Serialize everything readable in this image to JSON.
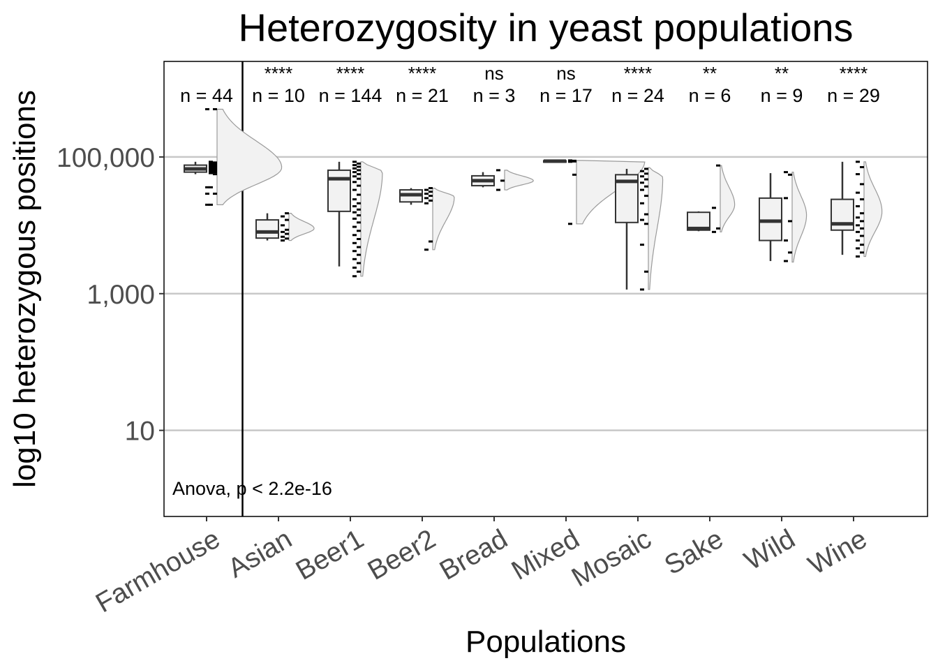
{
  "chart_data": {
    "type": "raincloud",
    "title": "Heterozygosity in yeast populations",
    "xlabel": "Populations",
    "ylabel": "log10 heterozygous positions",
    "y_scale": "log10",
    "ylim": [
      0.55,
      2500000
    ],
    "y_ticks": [
      {
        "value": 10,
        "label": "10"
      },
      {
        "value": 1000,
        "label": "1,000"
      },
      {
        "value": 100000,
        "label": "100,000"
      }
    ],
    "grid": {
      "major_y": true,
      "color": "#c8c8c8"
    },
    "annotation": "Anova, p < 2.2e-16",
    "reference_group": "Farmhouse",
    "categories": [
      "Farmhouse",
      "Asian",
      "Beer1",
      "Beer2",
      "Bread",
      "Mixed",
      "Mosaic",
      "Sake",
      "Wild",
      "Wine"
    ],
    "groups": [
      {
        "name": "Farmhouse",
        "n_label": "n = 44",
        "signif": "",
        "box": {
          "min": 56000,
          "q1": 60000,
          "median": 67000,
          "q3": 76000,
          "max": 85000
        },
        "outliers": [
          20000,
          29000,
          36000,
          500000
        ],
        "points": [
          20000,
          29000,
          36000,
          56000,
          58000,
          60000,
          61000,
          62000,
          63000,
          64000,
          65000,
          66000,
          67000,
          68000,
          69000,
          70000,
          71000,
          72000,
          73000,
          74000,
          75000,
          76000,
          77000,
          79000,
          81000,
          83000,
          85000,
          500000
        ],
        "density": {
          "from": 20000,
          "to": 500000,
          "peak": 70000,
          "width": 0.9
        }
      },
      {
        "name": "Asian",
        "n_label": "n = 10",
        "signif": "****",
        "box": {
          "min": 6000,
          "q1": 6500,
          "median": 8000,
          "q3": 12000,
          "max": 15000
        },
        "outliers": [],
        "points": [
          6000,
          6400,
          6800,
          7500,
          8000,
          8600,
          10000,
          12000,
          13500,
          15000
        ],
        "density": {
          "from": 6000,
          "to": 15000,
          "peak": 9000,
          "width": 0.35
        }
      },
      {
        "name": "Beer1",
        "n_label": "n = 144",
        "signif": "****",
        "box": {
          "min": 2500,
          "q1": 16000,
          "median": 48000,
          "q3": 64000,
          "max": 85000
        },
        "outliers": [],
        "points": [
          1800,
          2100,
          2400,
          2800,
          3200,
          3700,
          4200,
          4800,
          5500,
          6300,
          7200,
          8300,
          9500,
          11000,
          12500,
          14000,
          15500,
          17000,
          19000,
          21000,
          24000,
          28000,
          33000,
          38000,
          43000,
          48000,
          52000,
          56000,
          60000,
          64000,
          68000,
          72000,
          76000,
          80000,
          85000
        ],
        "density": {
          "from": 1800,
          "to": 85000,
          "peak": 60000,
          "width": 0.3
        }
      },
      {
        "name": "Beer2",
        "n_label": "n = 21",
        "signif": "****",
        "box": {
          "min": 20000,
          "q1": 22000,
          "median": 28000,
          "q3": 33000,
          "max": 35000
        },
        "outliers": [],
        "points": [
          4400,
          5800,
          21000,
          23000,
          25000,
          27000,
          29000,
          31000,
          33000,
          35000
        ],
        "density": {
          "from": 4400,
          "to": 35000,
          "peak": 26000,
          "width": 0.3
        }
      },
      {
        "name": "Bread",
        "n_label": "n = 3",
        "signif": "ns",
        "box": {
          "min": 36000,
          "q1": 38000,
          "median": 45000,
          "q3": 53000,
          "max": 60000
        },
        "outliers": [],
        "points": [
          33000,
          45000,
          64000
        ],
        "density": {
          "from": 33000,
          "to": 64000,
          "peak": 45000,
          "width": 0.4
        }
      },
      {
        "name": "Mixed",
        "n_label": "n = 17",
        "signif": "ns",
        "box": {
          "min": 86000,
          "q1": 86500,
          "median": 87000,
          "q3": 88000,
          "max": 89000
        },
        "outliers": [],
        "points": [
          10500,
          55000,
          85000,
          86000,
          87000,
          88000,
          89000
        ],
        "density": {
          "from": 10500,
          "to": 89000,
          "peak": 87500,
          "width": 0.95
        }
      },
      {
        "name": "Mosaic",
        "n_label": "n = 24",
        "signif": "****",
        "box": {
          "min": 1150,
          "q1": 11000,
          "median": 44000,
          "q3": 55000,
          "max": 67000
        },
        "outliers": [],
        "points": [
          1150,
          2100,
          5200,
          10500,
          12000,
          14500,
          21000,
          27000,
          33000,
          37000,
          42000,
          47000,
          52000,
          57000,
          62000,
          67000
        ],
        "density": {
          "from": 1150,
          "to": 70000,
          "peak": 50000,
          "width": 0.2
        }
      },
      {
        "name": "Sake",
        "n_label": "n = 6",
        "signif": "**",
        "box": {
          "min": 8200,
          "q1": 8500,
          "median": 9000,
          "q3": 15500,
          "max": 16000
        },
        "outliers": [],
        "points": [
          8000,
          9000,
          18000,
          75000
        ],
        "density": {
          "from": 8000,
          "to": 75000,
          "peak": 20000,
          "width": 0.2
        }
      },
      {
        "name": "Wild",
        "n_label": "n = 9",
        "signif": "**",
        "box": {
          "min": 3000,
          "q1": 6000,
          "median": 11500,
          "q3": 25000,
          "max": 58000
        },
        "outliers": [],
        "points": [
          3000,
          4000,
          6000,
          11500,
          25000,
          55000,
          60000
        ],
        "density": {
          "from": 2900,
          "to": 60000,
          "peak": 14000,
          "width": 0.2
        }
      },
      {
        "name": "Wine",
        "n_label": "n = 29",
        "signif": "****",
        "box": {
          "min": 3700,
          "q1": 8500,
          "median": 10500,
          "q3": 24000,
          "max": 85000
        },
        "outliers": [],
        "points": [
          3500,
          4000,
          4600,
          5200,
          6000,
          7000,
          8000,
          9000,
          10000,
          11500,
          13000,
          15000,
          19000,
          24000,
          30000,
          40000,
          56000,
          71000,
          85000
        ],
        "density": {
          "from": 3500,
          "to": 85000,
          "peak": 16000,
          "width": 0.25
        }
      }
    ]
  }
}
